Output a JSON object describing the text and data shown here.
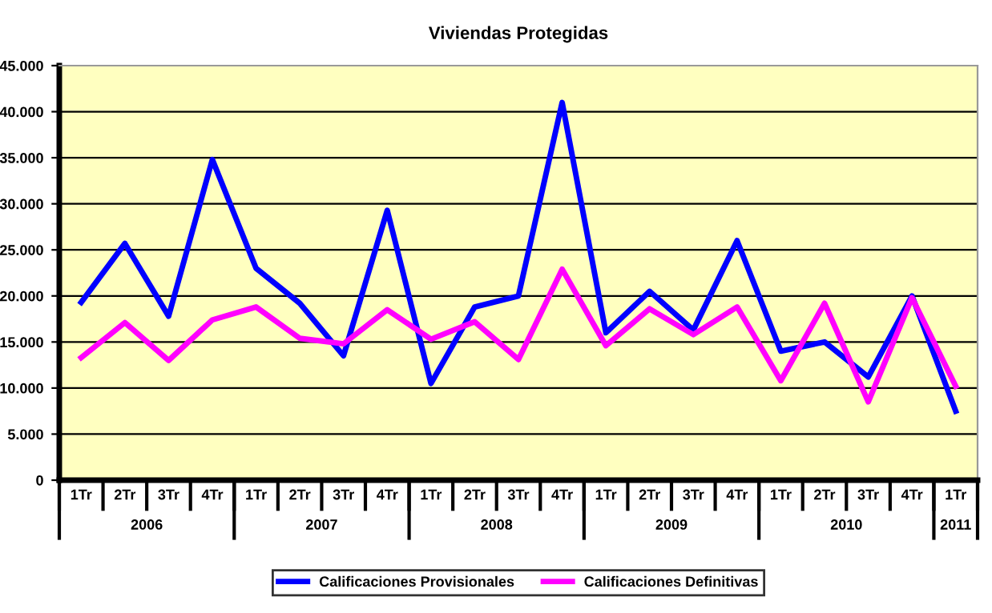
{
  "chart_data": {
    "type": "line",
    "title": "Viviendas Protegidas",
    "categories": [
      "1Tr",
      "2Tr",
      "3Tr",
      "4Tr",
      "1Tr",
      "2Tr",
      "3Tr",
      "4Tr",
      "1Tr",
      "2Tr",
      "3Tr",
      "4Tr",
      "1Tr",
      "2Tr",
      "3Tr",
      "4Tr",
      "1Tr",
      "2Tr",
      "3Tr",
      "4Tr",
      "1Tr"
    ],
    "annotations": [
      "2006",
      "2007",
      "2008",
      "2009",
      "2010",
      "2011"
    ],
    "series": [
      {
        "name": "Calificaciones Provisionales",
        "color": "#0000ff",
        "values": [
          19300,
          25700,
          17800,
          34800,
          23000,
          19200,
          13500,
          29300,
          10500,
          18800,
          20000,
          41000,
          16000,
          20500,
          16300,
          26000,
          14000,
          15000,
          11200,
          20000,
          7500
        ]
      },
      {
        "name": "Calificaciones Definitivas",
        "color": "#ff00ff",
        "values": [
          13300,
          17100,
          13000,
          17400,
          18800,
          15400,
          14800,
          18500,
          15300,
          17200,
          13100,
          22900,
          14600,
          18600,
          15800,
          18800,
          10800,
          19200,
          8500,
          19800,
          10200
        ]
      }
    ],
    "ylim": [
      0,
      45000
    ],
    "yticks": [
      0,
      {
        "value": 5000,
        "label": "5.000"
      },
      {
        "value": 10000,
        "label": "10.000"
      },
      {
        "value": 15000,
        "label": "15.000"
      },
      {
        "value": 20000,
        "label": "20.000"
      },
      {
        "value": 25000,
        "label": "25.000"
      },
      {
        "value": 30000,
        "label": "30.000"
      },
      {
        "value": 35000,
        "label": "35.000"
      },
      {
        "value": 40000,
        "label": "40.000"
      },
      {
        "value": 45000,
        "label": "45.000"
      }
    ],
    "grid": "y",
    "legend": "bottom",
    "marker": "none",
    "line_style": "solid"
  }
}
